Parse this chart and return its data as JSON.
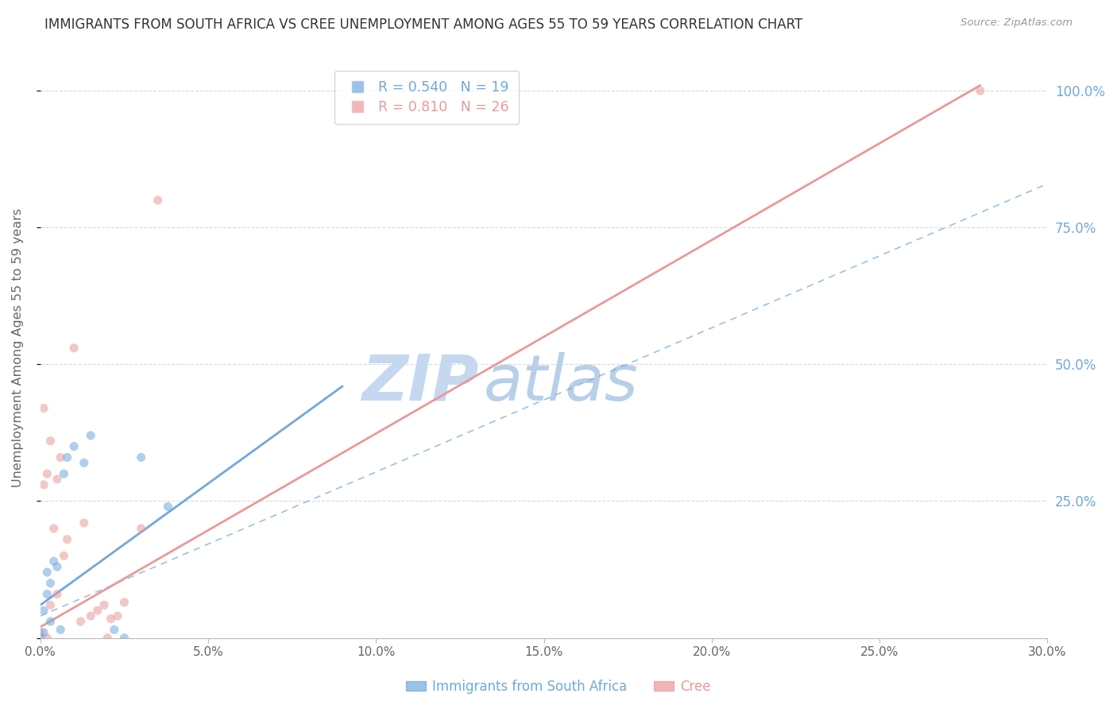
{
  "title": "IMMIGRANTS FROM SOUTH AFRICA VS CREE UNEMPLOYMENT AMONG AGES 55 TO 59 YEARS CORRELATION CHART",
  "source": "Source: ZipAtlas.com",
  "ylabel": "Unemployment Among Ages 55 to 59 years",
  "xmin": 0.0,
  "xmax": 0.3,
  "ymin": 0.0,
  "ymax": 1.06,
  "ytick_values": [
    0.0,
    0.25,
    0.5,
    0.75,
    1.0
  ],
  "xtick_labels": [
    "0.0%",
    "5.0%",
    "10.0%",
    "15.0%",
    "20.0%",
    "25.0%",
    "30.0%"
  ],
  "xtick_values": [
    0.0,
    0.05,
    0.1,
    0.15,
    0.2,
    0.25,
    0.3
  ],
  "right_ytick_labels": [
    "100.0%",
    "75.0%",
    "50.0%",
    "25.0%"
  ],
  "right_ytick_values": [
    1.0,
    0.75,
    0.5,
    0.25
  ],
  "series1_name": "Immigrants from South Africa",
  "series1_color": "#6fa8dc",
  "series1_R": 0.54,
  "series1_N": 19,
  "series1_scatter_x": [
    0.0,
    0.001,
    0.001,
    0.002,
    0.002,
    0.003,
    0.003,
    0.004,
    0.005,
    0.006,
    0.007,
    0.008,
    0.01,
    0.013,
    0.015,
    0.022,
    0.025,
    0.03,
    0.038
  ],
  "series1_scatter_y": [
    0.0,
    0.01,
    0.05,
    0.08,
    0.12,
    0.03,
    0.1,
    0.14,
    0.13,
    0.015,
    0.3,
    0.33,
    0.35,
    0.32,
    0.37,
    0.015,
    0.0,
    0.33,
    0.24
  ],
  "series1_line_x": [
    0.0,
    0.09
  ],
  "series1_line_y": [
    0.06,
    0.46
  ],
  "series2_name": "Cree",
  "series2_color": "#ea9999",
  "series2_R": 0.81,
  "series2_N": 26,
  "series2_scatter_x": [
    0.0,
    0.001,
    0.001,
    0.002,
    0.002,
    0.003,
    0.003,
    0.004,
    0.005,
    0.005,
    0.006,
    0.007,
    0.008,
    0.01,
    0.012,
    0.013,
    0.015,
    0.017,
    0.019,
    0.02,
    0.021,
    0.023,
    0.025,
    0.03,
    0.035,
    0.28
  ],
  "series2_scatter_y": [
    0.01,
    0.28,
    0.42,
    0.3,
    0.0,
    0.36,
    0.06,
    0.2,
    0.29,
    0.08,
    0.33,
    0.15,
    0.18,
    0.53,
    0.03,
    0.21,
    0.04,
    0.05,
    0.06,
    0.0,
    0.035,
    0.04,
    0.065,
    0.2,
    0.8,
    1.0
  ],
  "series2_line_x": [
    0.0,
    0.28
  ],
  "series2_line_y": [
    0.02,
    1.01
  ],
  "dashed_line_x": [
    0.0,
    0.3
  ],
  "dashed_line_y": [
    0.04,
    0.83
  ],
  "background_color": "#ffffff",
  "grid_color": "#d8d8d8",
  "title_color": "#333333",
  "axis_label_color": "#666666",
  "right_axis_color": "#6fa8dc",
  "watermark_zip_color": "#c5d8f0",
  "watermark_atlas_color": "#b8cfe8",
  "scatter_size": 65
}
